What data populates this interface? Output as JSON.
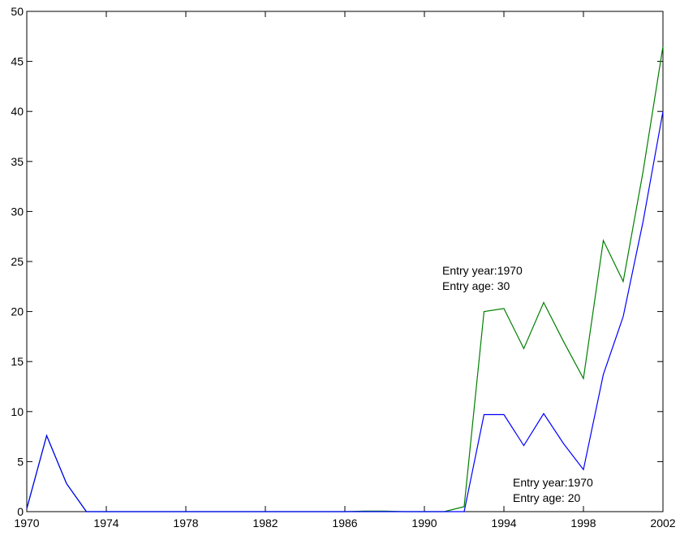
{
  "chart_data": {
    "type": "line",
    "x": [
      1970,
      1971,
      1972,
      1973,
      1974,
      1975,
      1976,
      1977,
      1978,
      1979,
      1980,
      1981,
      1982,
      1983,
      1984,
      1985,
      1986,
      1987,
      1988,
      1989,
      1990,
      1991,
      1992,
      1993,
      1994,
      1995,
      1996,
      1997,
      1998,
      1999,
      2000,
      2001,
      2002
    ],
    "series": [
      {
        "color": "#007f00",
        "values": [
          0.3,
          7.6,
          2.8,
          0,
          0,
          0,
          0,
          0,
          0,
          0,
          0,
          0,
          0,
          0,
          0,
          0,
          0,
          0.05,
          0.05,
          0,
          0,
          0,
          0.5,
          20,
          20.3,
          16.3,
          20.9,
          17,
          13.3,
          27.1,
          23,
          34,
          46.5
        ]
      },
      {
        "color": "#0000ff",
        "values": [
          0.3,
          7.6,
          2.8,
          0,
          0,
          0,
          0,
          0,
          0,
          0,
          0,
          0,
          0,
          0,
          0,
          0,
          0,
          0,
          0,
          0,
          0,
          0,
          0,
          9.7,
          9.7,
          6.6,
          9.8,
          6.8,
          4.2,
          13.7,
          19.5,
          29,
          40
        ]
      }
    ],
    "xlim": [
      1970,
      2002
    ],
    "xticks": [
      1970,
      1974,
      1978,
      1982,
      1986,
      1990,
      1994,
      1998,
      2002
    ],
    "ylim": [
      0,
      50
    ],
    "yticks": [
      0,
      5,
      10,
      15,
      20,
      25,
      30,
      35,
      40,
      45,
      50
    ],
    "annotations": [
      {
        "lines": [
          "Entry year:1970",
          "Entry age: 30"
        ]
      },
      {
        "lines": [
          "Entry year:1970",
          "Entry age: 20"
        ]
      }
    ]
  }
}
